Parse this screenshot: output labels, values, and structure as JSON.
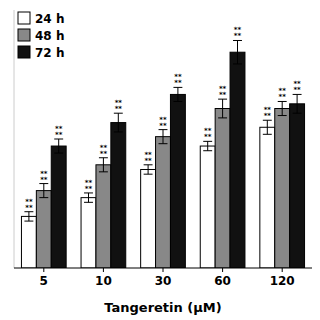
{
  "chart_data": {
    "type": "bar",
    "categories": [
      "5",
      "10",
      "30",
      "60",
      "120"
    ],
    "series": [
      {
        "name": "24 h",
        "color": "#ffffff",
        "values": [
          0.22,
          0.3,
          0.42,
          0.52,
          0.6
        ],
        "errors": [
          0.02,
          0.02,
          0.02,
          0.02,
          0.03
        ],
        "annotations": [
          "**\n**",
          "**\n**",
          "**\n**",
          "**\n**",
          "**\n**"
        ]
      },
      {
        "name": "48 h",
        "color": "#888888",
        "values": [
          0.33,
          0.44,
          0.56,
          0.68,
          0.68
        ],
        "errors": [
          0.03,
          0.03,
          0.03,
          0.04,
          0.03
        ],
        "annotations": [
          "**\n**",
          "**\n**",
          "**\n**",
          "**\n**",
          "**\n**"
        ]
      },
      {
        "name": "72 h",
        "color": "#111111",
        "values": [
          0.52,
          0.62,
          0.74,
          0.92,
          0.7
        ],
        "errors": [
          0.03,
          0.04,
          0.03,
          0.05,
          0.04
        ],
        "annotations": [
          "**\n**",
          "**\n**",
          "**\n**",
          "**\n**",
          "**\n**"
        ]
      }
    ],
    "x_label": "Tangeretin (μM)",
    "ylim": [
      0,
      1.1
    ],
    "tick_labels": "x",
    "legend": "upper left",
    "grid": false
  }
}
